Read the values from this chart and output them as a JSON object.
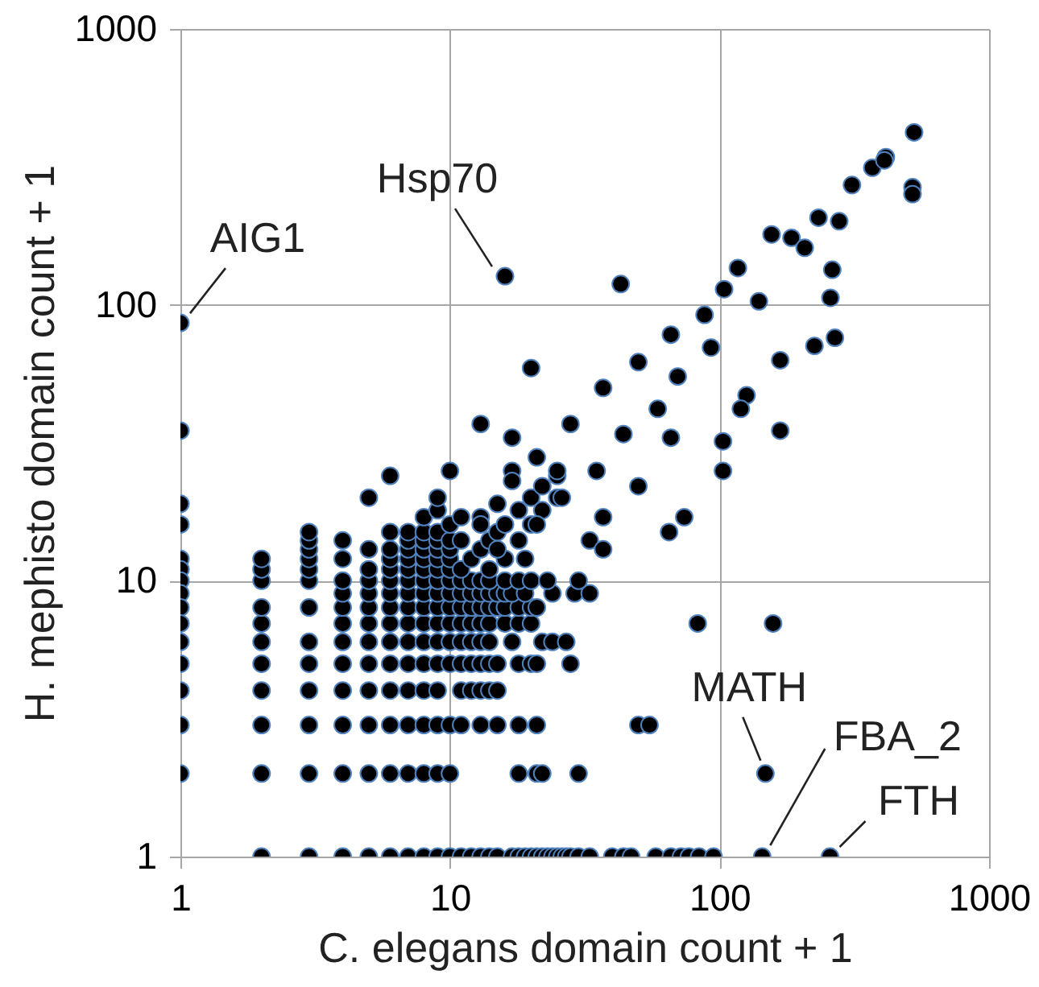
{
  "chart_data": {
    "type": "scatter",
    "xlabel": "C. elegans domain count + 1",
    "ylabel": "H. mephisto domain count + 1",
    "log": "xy",
    "grid": true,
    "marker": "circle",
    "xlim": [
      1,
      1000
    ],
    "xticks": [
      1,
      10,
      100,
      1000
    ],
    "ylim": [
      1,
      1000
    ],
    "yticks": [
      1,
      10,
      100,
      1000
    ],
    "annotations": [
      {
        "text": "AIG1",
        "x": 1,
        "y": 86
      },
      {
        "text": "Hsp70",
        "x": 16,
        "y": 127
      },
      {
        "text": "MATH",
        "x": 148,
        "y": 2
      },
      {
        "text": "FBA_2",
        "x": 144,
        "y": 1
      },
      {
        "text": "FTH",
        "x": 257,
        "y": 1
      }
    ],
    "series": [
      {
        "color": "#000000",
        "x": [
          1,
          1,
          1,
          1,
          1,
          1,
          1,
          1,
          1,
          1,
          1,
          1,
          1,
          1,
          1,
          2,
          2,
          2,
          2,
          2,
          2,
          2,
          2,
          2,
          2,
          2,
          3,
          3,
          3,
          3,
          3,
          3,
          3,
          3,
          3,
          3,
          3,
          3,
          3,
          4,
          4,
          4,
          4,
          4,
          4,
          4,
          4,
          4,
          4,
          4,
          4,
          5,
          5,
          5,
          5,
          5,
          5,
          5,
          5,
          5,
          5,
          5,
          5,
          5,
          6,
          6,
          6,
          6,
          6,
          6,
          6,
          6,
          6,
          6,
          6,
          6,
          6,
          6,
          6,
          7,
          7,
          7,
          7,
          7,
          7,
          7,
          7,
          7,
          7,
          7,
          7,
          7,
          7,
          7,
          8,
          8,
          8,
          8,
          8,
          8,
          8,
          8,
          8,
          8,
          8,
          8,
          8,
          8,
          8,
          8,
          9,
          9,
          9,
          9,
          9,
          9,
          9,
          9,
          9,
          9,
          9,
          9,
          9,
          9,
          9,
          9,
          9,
          10,
          10,
          10,
          10,
          10,
          10,
          10,
          10,
          10,
          10,
          10,
          10,
          10,
          10,
          10,
          11,
          12,
          13,
          14,
          15,
          17,
          18,
          19,
          20,
          21,
          22,
          23,
          24,
          25,
          26,
          27,
          28,
          30,
          33,
          40,
          44,
          47,
          58,
          66,
          72,
          77,
          84,
          95,
          144,
          257,
          18,
          21,
          22,
          30,
          148,
          11,
          13,
          15,
          18,
          21,
          50,
          55,
          11,
          12,
          13,
          14,
          15,
          11,
          12,
          13,
          14,
          15,
          18,
          20,
          21,
          28,
          11,
          12,
          13,
          14,
          17,
          22,
          24,
          27,
          11,
          12,
          13,
          14,
          16,
          18,
          20,
          83,
          158,
          11,
          12,
          13,
          14,
          15,
          16,
          18,
          20,
          21,
          11,
          12,
          13,
          14,
          15,
          16,
          17,
          19,
          24,
          29,
          33,
          11,
          12,
          13,
          14,
          16,
          18,
          20,
          23,
          30,
          11,
          12,
          13,
          14,
          15,
          16,
          18,
          20,
          22,
          25,
          14,
          16,
          18,
          20,
          22,
          25,
          11,
          13,
          15,
          13,
          17,
          11,
          21,
          19,
          15,
          33,
          37,
          25,
          17,
          17,
          13,
          21,
          28,
          37,
          50,
          66,
          88,
          104,
          117,
          140,
          156,
          185,
          207,
          233,
          278,
          310,
          369,
          414,
          409,
          527,
          520,
          520,
          262,
          258,
          268,
          225,
          168,
          168,
          126,
          120,
          103,
          103,
          70,
          93,
          59,
          44,
          35,
          26,
          37,
          50,
          66,
          65,
          74,
          16,
          43,
          20
        ],
        "values": [
          86,
          35,
          19,
          16,
          12,
          11,
          10,
          9,
          8,
          7,
          6,
          5,
          4,
          3,
          2,
          1,
          2,
          3,
          4,
          5,
          6,
          7,
          8,
          10,
          11,
          12,
          1,
          2,
          3,
          4,
          5,
          6,
          8,
          10,
          11,
          12,
          13,
          14,
          15,
          1,
          2,
          3,
          4,
          5,
          6,
          7,
          8,
          9,
          10,
          12,
          14,
          1,
          2,
          3,
          4,
          5,
          6,
          7,
          8,
          9,
          10,
          11,
          13,
          20,
          1,
          2,
          3,
          4,
          5,
          6,
          7,
          8,
          9,
          10,
          11,
          12,
          13,
          15,
          24,
          1,
          2,
          3,
          4,
          5,
          6,
          7,
          8,
          9,
          10,
          11,
          12,
          13,
          14,
          15,
          1,
          2,
          3,
          4,
          5,
          6,
          7,
          8,
          9,
          10,
          11,
          12,
          13,
          14,
          15,
          17,
          1,
          2,
          3,
          4,
          5,
          6,
          7,
          8,
          9,
          10,
          11,
          12,
          13,
          14,
          15,
          18,
          20,
          1,
          2,
          3,
          5,
          6,
          7,
          8,
          9,
          10,
          11,
          12,
          13,
          14,
          16,
          25,
          1,
          1,
          1,
          1,
          1,
          1,
          1,
          1,
          1,
          1,
          1,
          1,
          1,
          1,
          1,
          1,
          1,
          1,
          1,
          1,
          1,
          1,
          1,
          1,
          1,
          1,
          1,
          1,
          1,
          1,
          2,
          2,
          2,
          2,
          2,
          3,
          3,
          3,
          3,
          3,
          3,
          3,
          4,
          4,
          4,
          4,
          4,
          5,
          5,
          5,
          5,
          5,
          5,
          5,
          5,
          5,
          6,
          6,
          6,
          6,
          6,
          6,
          6,
          6,
          7,
          7,
          7,
          7,
          7,
          7,
          7,
          7,
          7,
          8,
          8,
          8,
          8,
          8,
          8,
          8,
          8,
          8,
          9,
          9,
          9,
          9,
          9,
          9,
          9,
          9,
          9,
          9,
          9,
          10,
          10,
          10,
          10,
          10,
          10,
          10,
          10,
          10,
          11,
          12,
          13,
          14,
          15,
          16,
          18,
          20,
          22,
          24,
          11,
          12,
          14,
          16,
          18,
          20,
          14,
          17,
          19,
          37,
          33,
          17,
          16,
          12,
          13,
          14,
          13,
          25,
          25,
          23,
          16,
          28,
          37,
          50,
          62,
          78,
          92,
          114,
          136,
          103,
          180,
          175,
          161,
          207,
          201,
          272,
          314,
          343,
          334,
          422,
          267,
          252,
          134,
          106,
          76,
          71,
          63,
          35,
          47,
          42,
          32,
          25,
          55,
          70,
          42,
          34,
          25,
          20,
          17,
          22,
          33,
          15,
          17,
          127,
          119,
          59
        ]
      }
    ]
  }
}
